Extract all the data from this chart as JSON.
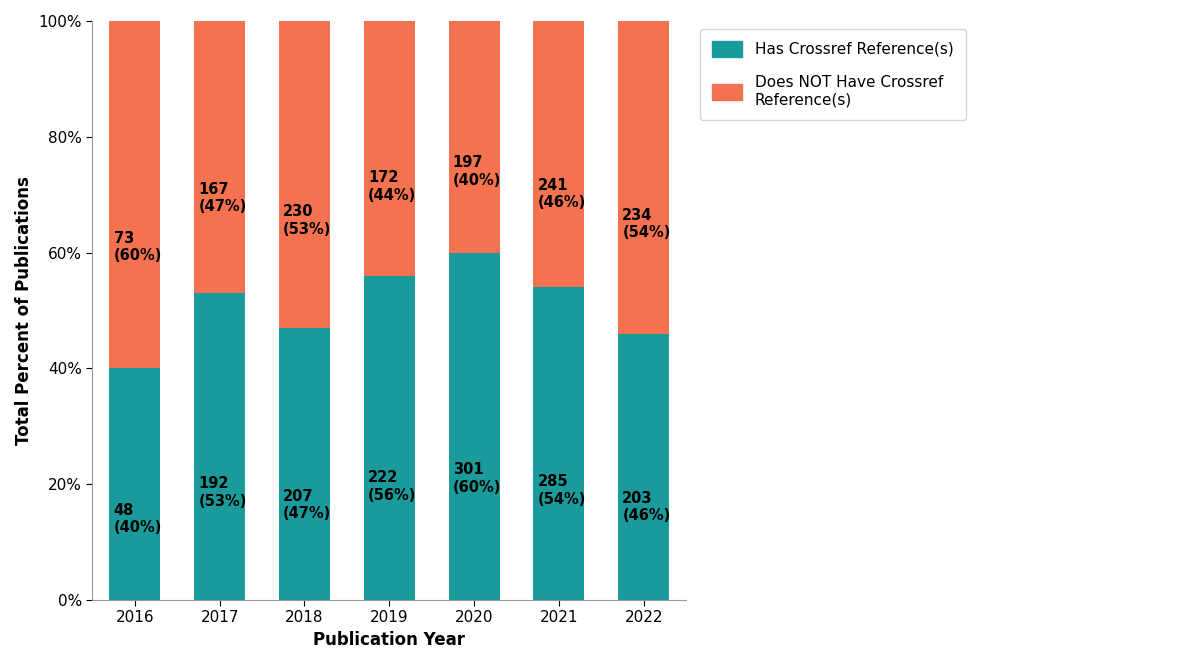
{
  "years": [
    2016,
    2017,
    2018,
    2019,
    2020,
    2021,
    2022
  ],
  "has_ref_count": [
    48,
    192,
    207,
    222,
    301,
    285,
    203
  ],
  "has_ref_pct": [
    40,
    53,
    47,
    56,
    60,
    54,
    46
  ],
  "no_ref_count": [
    73,
    167,
    230,
    172,
    197,
    241,
    234
  ],
  "no_ref_pct": [
    60,
    47,
    53,
    44,
    40,
    46,
    54
  ],
  "color_has_ref": "#1a9a9a",
  "color_no_ref": "#f47250",
  "xlabel": "Publication Year",
  "ylabel": "Total Percent of Publications",
  "legend_has": "Has Crossref Reference(s)",
  "legend_no": "Does NOT Have Crossref\nReference(s)",
  "yticks": [
    0,
    20,
    40,
    60,
    80,
    100
  ],
  "ytick_labels": [
    "0%",
    "20%",
    "40%",
    "60%",
    "80%",
    "100%"
  ],
  "background_color": "#ffffff",
  "bar_width": 0.6,
  "label_fontsize": 10.5,
  "axis_label_fontsize": 12,
  "tick_fontsize": 11,
  "legend_fontsize": 11,
  "spine_color": "#999999"
}
